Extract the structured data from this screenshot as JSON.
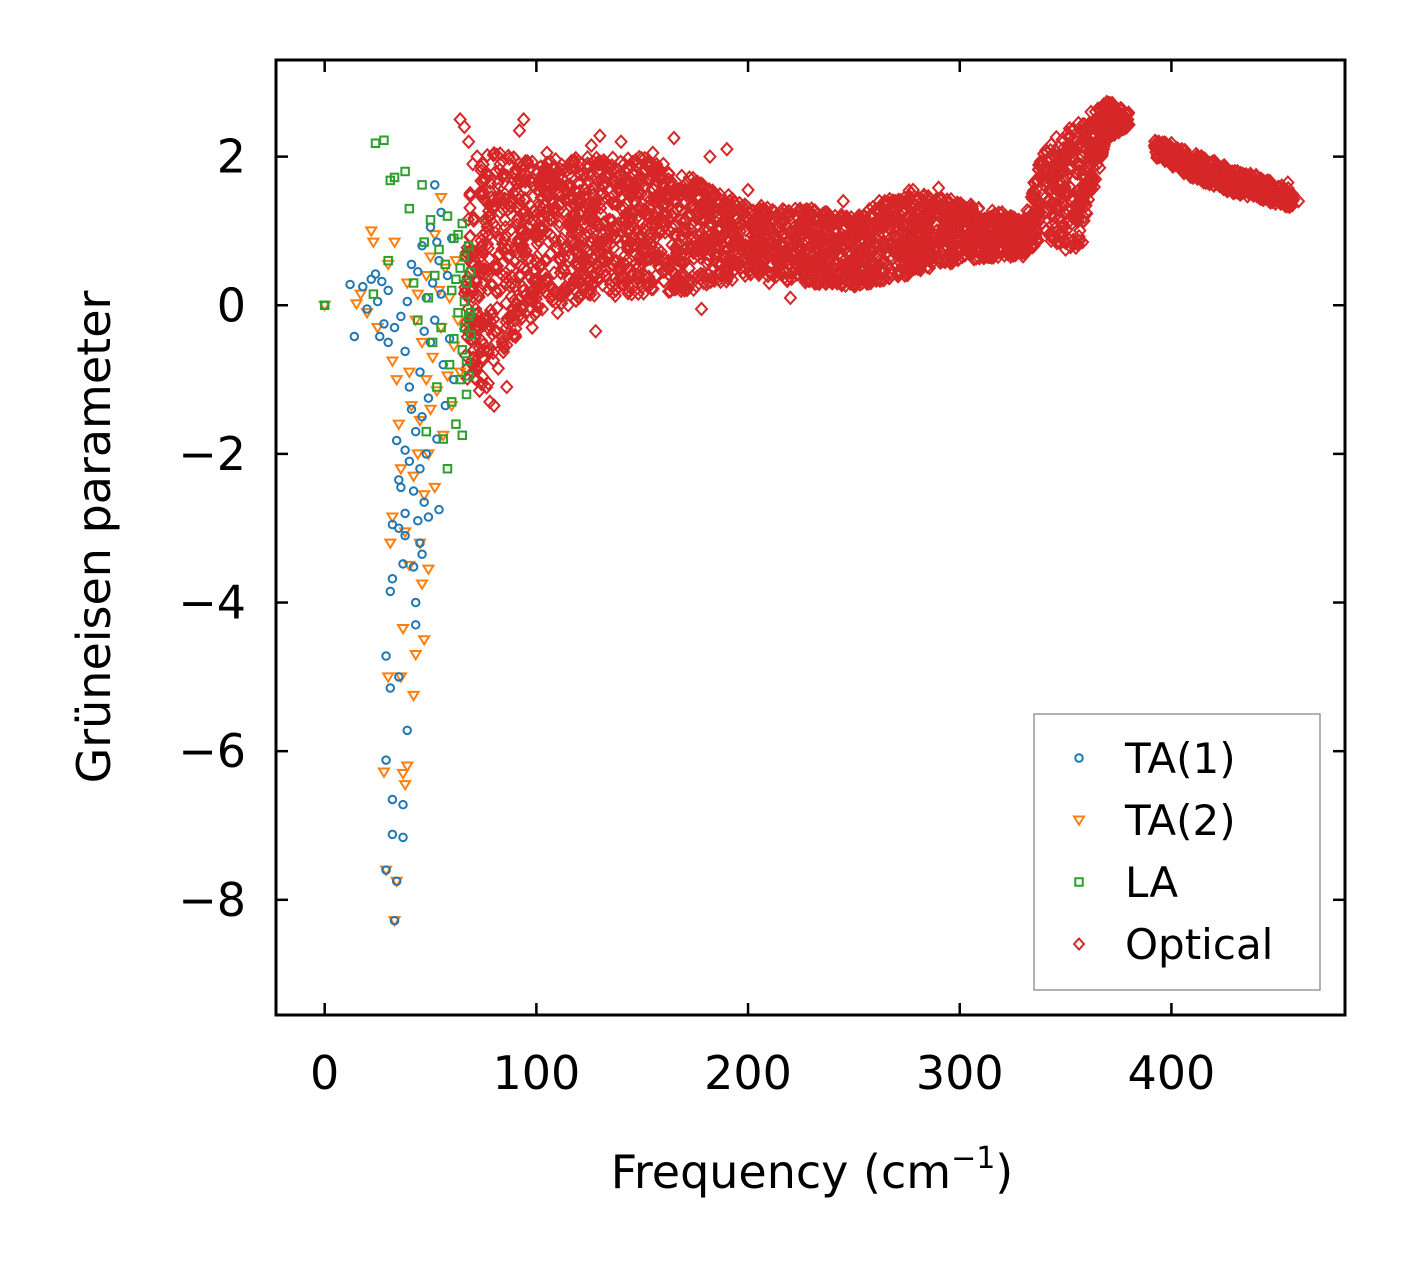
{
  "chart_data": {
    "type": "scatter",
    "title": "",
    "xlabel": "Frequency (cm",
    "xlabel_sup": "−1",
    "xlabel_end": ")",
    "ylabel": "Grüneisen parameter",
    "xlim": [
      -23,
      482
    ],
    "ylim": [
      -9.55,
      3.3
    ],
    "xticks": [
      0,
      100,
      200,
      300,
      400
    ],
    "xtick_labels": [
      "0",
      "100",
      "200",
      "300",
      "400"
    ],
    "yticks": [
      2,
      0,
      -2,
      -4,
      -6,
      -8
    ],
    "ytick_labels": [
      "2",
      "0",
      "−2",
      "−4",
      "−6",
      "−8"
    ],
    "legend_position": "lower-right",
    "series": [
      {
        "name": "TA(1)",
        "marker": "circle",
        "color": "#1f77b4",
        "points": [
          [
            0,
            0
          ],
          [
            12,
            0.28
          ],
          [
            14,
            -0.42
          ],
          [
            18,
            0.25
          ],
          [
            20,
            -0.05
          ],
          [
            22,
            0.35
          ],
          [
            24,
            0.42
          ],
          [
            25,
            0.05
          ],
          [
            26,
            -0.42
          ],
          [
            27,
            0.32
          ],
          [
            28,
            -0.25
          ],
          [
            29,
            -6.12
          ],
          [
            29,
            -4.72
          ],
          [
            29,
            -7.6
          ],
          [
            30,
            0.2
          ],
          [
            30,
            -0.5
          ],
          [
            31,
            -3.85
          ],
          [
            31,
            -5.15
          ],
          [
            32,
            -2.95
          ],
          [
            32,
            -3.68
          ],
          [
            32,
            -6.65
          ],
          [
            32,
            -7.12
          ],
          [
            33,
            -8.28
          ],
          [
            33,
            -0.3
          ],
          [
            34,
            -1.82
          ],
          [
            34,
            -7.75
          ],
          [
            35,
            -2.35
          ],
          [
            35,
            -3.0
          ],
          [
            35,
            -5.0
          ],
          [
            36,
            -0.15
          ],
          [
            36,
            -2.45
          ],
          [
            37,
            -6.72
          ],
          [
            37,
            -7.16
          ],
          [
            37,
            -3.48
          ],
          [
            38,
            -0.62
          ],
          [
            38,
            -1.95
          ],
          [
            38,
            -2.8
          ],
          [
            38,
            -3.1
          ],
          [
            39,
            0.05
          ],
          [
            39,
            -5.72
          ],
          [
            40,
            -1.1
          ],
          [
            40,
            -2.1
          ],
          [
            41,
            0.55
          ],
          [
            41,
            -1.4
          ],
          [
            42,
            -3.52
          ],
          [
            42,
            -2.5
          ],
          [
            43,
            -1.7
          ],
          [
            43,
            -4.0
          ],
          [
            43,
            -4.3
          ],
          [
            44,
            -2.9
          ],
          [
            44,
            0.45
          ],
          [
            45,
            -0.9
          ],
          [
            45,
            -2.2
          ],
          [
            45,
            -3.2
          ],
          [
            46,
            0.8
          ],
          [
            46,
            -1.5
          ],
          [
            46,
            -3.35
          ],
          [
            47,
            -2.65
          ],
          [
            47,
            -0.35
          ],
          [
            48,
            -2.0
          ],
          [
            48,
            0.1
          ],
          [
            49,
            -2.85
          ],
          [
            49,
            -1.25
          ],
          [
            50,
            -0.5
          ],
          [
            50,
            1.05
          ],
          [
            51,
            0.3
          ],
          [
            52,
            -0.2
          ],
          [
            52,
            1.62
          ],
          [
            53,
            0.85
          ],
          [
            53,
            -1.8
          ],
          [
            54,
            0.6
          ],
          [
            54,
            -2.75
          ],
          [
            55,
            1.25
          ],
          [
            55,
            0.15
          ],
          [
            56,
            -0.8
          ],
          [
            57,
            -1.35
          ],
          [
            58,
            0.4
          ],
          [
            59,
            -0.45
          ],
          [
            60,
            0.9
          ],
          [
            61,
            -1.0
          ]
        ]
      },
      {
        "name": "TA(2)",
        "marker": "triangle",
        "color": "#ff7f0e",
        "points": [
          [
            0,
            0
          ],
          [
            15,
            0.02
          ],
          [
            17,
            0.15
          ],
          [
            20,
            -0.1
          ],
          [
            22,
            1.0
          ],
          [
            23,
            0.85
          ],
          [
            25,
            -0.3
          ],
          [
            28,
            -6.28
          ],
          [
            29,
            -7.6
          ],
          [
            30,
            0.55
          ],
          [
            30,
            -5.0
          ],
          [
            31,
            -3.2
          ],
          [
            32,
            -2.85
          ],
          [
            32,
            -0.75
          ],
          [
            33,
            -8.28
          ],
          [
            33,
            0.85
          ],
          [
            34,
            -7.75
          ],
          [
            34,
            -1.0
          ],
          [
            35,
            -1.6
          ],
          [
            36,
            -5.0
          ],
          [
            36,
            -2.2
          ],
          [
            37,
            -6.3
          ],
          [
            37,
            -4.35
          ],
          [
            38,
            -6.45
          ],
          [
            38,
            -3.05
          ],
          [
            39,
            -6.2
          ],
          [
            39,
            0.3
          ],
          [
            40,
            -0.9
          ],
          [
            40,
            -3.5
          ],
          [
            41,
            -1.35
          ],
          [
            42,
            -2.3
          ],
          [
            42,
            -5.25
          ],
          [
            43,
            -4.7
          ],
          [
            43,
            -0.2
          ],
          [
            44,
            -2.0
          ],
          [
            44,
            0.15
          ],
          [
            45,
            -3.2
          ],
          [
            45,
            -1.55
          ],
          [
            46,
            -3.75
          ],
          [
            46,
            -0.5
          ],
          [
            47,
            -4.5
          ],
          [
            47,
            -2.55
          ],
          [
            48,
            -1.0
          ],
          [
            48,
            0.4
          ],
          [
            49,
            -3.55
          ],
          [
            49,
            -2.0
          ],
          [
            50,
            -1.4
          ],
          [
            50,
            0.65
          ],
          [
            51,
            -0.7
          ],
          [
            52,
            -2.45
          ],
          [
            52,
            0.95
          ],
          [
            53,
            -1.15
          ],
          [
            54,
            0.2
          ],
          [
            55,
            1.45
          ],
          [
            55,
            -0.3
          ],
          [
            56,
            -1.75
          ],
          [
            57,
            0.5
          ],
          [
            58,
            -0.95
          ],
          [
            59,
            0.1
          ],
          [
            60,
            -1.35
          ],
          [
            61,
            -0.55
          ],
          [
            62,
            0.6
          ],
          [
            63,
            -0.2
          ],
          [
            64,
            -0.9
          ]
        ]
      },
      {
        "name": "LA",
        "marker": "square",
        "color": "#2ca02c",
        "points": [
          [
            0,
            0
          ],
          [
            23,
            0.15
          ],
          [
            24,
            2.18
          ],
          [
            28,
            2.22
          ],
          [
            30,
            0.6
          ],
          [
            31,
            1.68
          ],
          [
            33,
            1.72
          ],
          [
            38,
            1.8
          ],
          [
            40,
            1.3
          ],
          [
            42,
            0.3
          ],
          [
            44,
            -0.2
          ],
          [
            46,
            1.62
          ],
          [
            47,
            0.85
          ],
          [
            48,
            -1.7
          ],
          [
            49,
            0.1
          ],
          [
            50,
            1.15
          ],
          [
            51,
            -0.5
          ],
          [
            52,
            0.4
          ],
          [
            53,
            -1.1
          ],
          [
            54,
            0.75
          ],
          [
            55,
            -0.3
          ],
          [
            56,
            -1.8
          ],
          [
            57,
            0.55
          ],
          [
            58,
            -2.2
          ],
          [
            58,
            1.2
          ],
          [
            59,
            -0.8
          ],
          [
            60,
            0.2
          ],
          [
            60,
            -1.3
          ],
          [
            61,
            0.9
          ],
          [
            61,
            -0.45
          ],
          [
            62,
            -1.6
          ],
          [
            62,
            0.35
          ],
          [
            63,
            -0.1
          ],
          [
            63,
            0.95
          ],
          [
            64,
            -1.0
          ],
          [
            64,
            0.5
          ],
          [
            65,
            -0.6
          ],
          [
            65,
            1.1
          ],
          [
            65,
            -1.75
          ],
          [
            66,
            0.05
          ],
          [
            66,
            -0.3
          ],
          [
            66,
            0.65
          ],
          [
            67,
            -1.2
          ],
          [
            67,
            -0.75
          ],
          [
            67,
            0.3
          ],
          [
            68,
            -0.15
          ],
          [
            68,
            0.8
          ],
          [
            68,
            -0.95
          ],
          [
            69,
            -0.4
          ],
          [
            69,
            0.45
          ],
          [
            69,
            -0.1
          ]
        ]
      },
      {
        "name": "Optical",
        "marker": "diamond",
        "color": "#d62728",
        "dense_band": [
          [
            66,
            -1.0,
            1.5
          ],
          [
            75,
            -1.2,
            2.0
          ],
          [
            85,
            -0.6,
            2.1
          ],
          [
            100,
            -0.1,
            1.95
          ],
          [
            125,
            0.1,
            2.0
          ],
          [
            150,
            0.15,
            2.0
          ],
          [
            175,
            0.2,
            1.7
          ],
          [
            200,
            0.4,
            1.35
          ],
          [
            225,
            0.3,
            1.3
          ],
          [
            250,
            0.25,
            1.2
          ],
          [
            275,
            0.4,
            1.55
          ],
          [
            300,
            0.6,
            1.4
          ],
          [
            330,
            0.65,
            1.15
          ],
          [
            340,
            0.9,
            2.15
          ],
          [
            355,
            0.7,
            2.45
          ],
          [
            370,
            2.25,
            2.75
          ],
          [
            380,
            2.4,
            2.6
          ]
        ],
        "dense_band_2": [
          [
            392,
            2.0,
            2.25
          ],
          [
            410,
            1.7,
            2.05
          ],
          [
            430,
            1.5,
            1.85
          ],
          [
            458,
            1.3,
            1.55
          ]
        ],
        "points": [
          [
            64,
            2.5
          ],
          [
            66,
            2.4
          ],
          [
            68,
            2.2
          ],
          [
            70,
            1.9
          ],
          [
            72,
            2.0
          ],
          [
            78,
            -1.3
          ],
          [
            80,
            -1.35
          ],
          [
            82,
            -0.85
          ],
          [
            86,
            -1.1
          ],
          [
            90,
            -0.4
          ],
          [
            92,
            2.35
          ],
          [
            94,
            2.5
          ],
          [
            96,
            1.9
          ],
          [
            98,
            -0.3
          ],
          [
            105,
            2.05
          ],
          [
            110,
            -0.1
          ],
          [
            115,
            0.0
          ],
          [
            120,
            0.1
          ],
          [
            126,
            2.15
          ],
          [
            128,
            -0.35
          ],
          [
            130,
            2.28
          ],
          [
            135,
            1.85
          ],
          [
            140,
            2.2
          ],
          [
            145,
            0.15
          ],
          [
            155,
            2.05
          ],
          [
            160,
            1.9
          ],
          [
            165,
            2.25
          ],
          [
            170,
            0.2
          ],
          [
            178,
            -0.05
          ],
          [
            182,
            2.0
          ],
          [
            190,
            2.1
          ],
          [
            200,
            1.55
          ],
          [
            210,
            0.3
          ],
          [
            220,
            0.1
          ],
          [
            230,
            1.3
          ],
          [
            245,
            1.4
          ],
          [
            255,
            1.2
          ],
          [
            262,
            1.4
          ],
          [
            278,
            1.55
          ],
          [
            290,
            1.58
          ],
          [
            300,
            0.75
          ],
          [
            320,
            1.25
          ],
          [
            335,
            1.45
          ],
          [
            345,
            0.9
          ],
          [
            350,
            0.75
          ],
          [
            358,
            0.85
          ],
          [
            362,
            2.6
          ],
          [
            368,
            2.7
          ],
          [
            372,
            2.72
          ],
          [
            376,
            2.65
          ],
          [
            394,
            2.2
          ],
          [
            400,
            2.18
          ],
          [
            412,
            2.0
          ],
          [
            425,
            1.88
          ],
          [
            440,
            1.75
          ],
          [
            455,
            1.65
          ],
          [
            460,
            1.4
          ]
        ]
      }
    ]
  }
}
